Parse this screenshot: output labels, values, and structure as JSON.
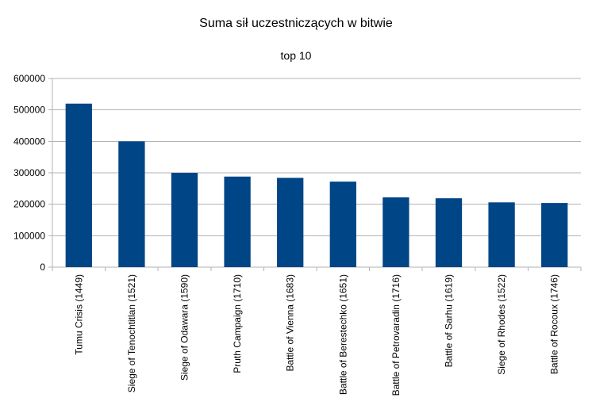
{
  "chart_data": {
    "type": "bar",
    "title": "Suma sił uczestniczących w bitwie",
    "subtitle": "top 10",
    "xlabel": "",
    "ylabel": "",
    "ylim": [
      0,
      600000
    ],
    "yticks": [
      "0",
      "100000",
      "200000",
      "300000",
      "400000",
      "500000",
      "600000"
    ],
    "grid": true,
    "legend": "none",
    "bar_color": "#004586",
    "categories": [
      "Tumu Crisis (1449)",
      "Siege of Tenochtitlan (1521)",
      "Siege of Odawara (1590)",
      "Pruth Campaign (1710)",
      "Battle of Vienna (1683)",
      "Battle of Berestechko (1651)",
      "Battle of Petrovaradin (1716)",
      "Battle of Sarhu (1619)",
      "Siege of Rhodes (1522)",
      "Battle of Rocoux (1746)"
    ],
    "values": [
      520000,
      400000,
      300000,
      288000,
      284000,
      272000,
      222000,
      219000,
      206000,
      204000
    ]
  }
}
